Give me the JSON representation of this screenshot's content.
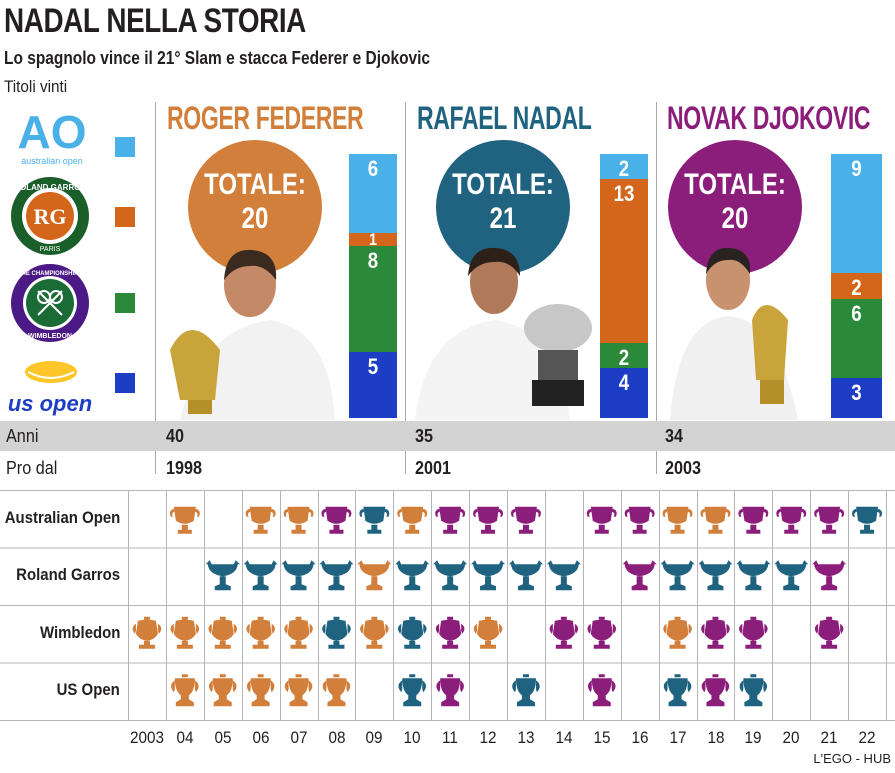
{
  "title": "NADAL NELLA STORIA",
  "subtitle": "Lo spagnolo vince il 21° Slam e stacca Federer e Djokovic",
  "caption": "Titoli vinti",
  "credit": "L'EGO - HUB",
  "colors": {
    "federer": "#d17f3a",
    "nadal": "#1f6380",
    "djokovic": "#8b1e7b",
    "australian_open": "#4ab0e8",
    "roland_garros": "#d4661c",
    "wimbledon": "#2a8a3a",
    "us_open": "#1d3ec4"
  },
  "logos": {
    "australian_open": {
      "mark": "AO",
      "text": "australian open"
    },
    "roland_garros": {
      "text": "ROLAND GARROS",
      "sub": "PARIS"
    },
    "wimbledon": {
      "text": "THE CHAMPIONSHIPS",
      "sub": "WIMBLEDON"
    },
    "us_open": {
      "text": "us open"
    }
  },
  "players": [
    {
      "name": "ROGER FEDERER",
      "total_label": "TOTALE:",
      "total": "20",
      "age": "40",
      "pro_since": "1998",
      "slams": {
        "australian_open": 6,
        "roland_garros": 1,
        "wimbledon": 8,
        "us_open": 5
      }
    },
    {
      "name": "RAFAEL NADAL",
      "total_label": "TOTALE:",
      "total": "21",
      "age": "35",
      "pro_since": "2001",
      "slams": {
        "australian_open": 2,
        "roland_garros": 13,
        "wimbledon": 2,
        "us_open": 4
      }
    },
    {
      "name": "NOVAK DJOKOVIC",
      "total_label": "TOTALE:",
      "total": "20",
      "age": "34",
      "pro_since": "2003",
      "slams": {
        "australian_open": 9,
        "roland_garros": 2,
        "wimbledon": 6,
        "us_open": 3
      }
    }
  ],
  "rows": {
    "age_label": "Anni",
    "pro_label": "Pro dal"
  },
  "chart_data": {
    "type": "table",
    "years": [
      "2003",
      "04",
      "05",
      "06",
      "07",
      "08",
      "09",
      "10",
      "11",
      "12",
      "13",
      "14",
      "15",
      "16",
      "17",
      "18",
      "19",
      "20",
      "21",
      "22"
    ],
    "tournaments": [
      {
        "name": "Australian Open",
        "winners": [
          "",
          "F",
          "",
          "F",
          "F",
          "D",
          "N",
          "F",
          "D",
          "D",
          "D",
          "",
          "D",
          "D",
          "F",
          "F",
          "D",
          "D",
          "D",
          "N"
        ]
      },
      {
        "name": "Roland Garros",
        "winners": [
          "",
          "",
          "N",
          "N",
          "N",
          "N",
          "F",
          "N",
          "N",
          "N",
          "N",
          "N",
          "",
          "D",
          "N",
          "N",
          "N",
          "N",
          "D",
          ""
        ]
      },
      {
        "name": "Wimbledon",
        "winners": [
          "F",
          "F",
          "F",
          "F",
          "F",
          "N",
          "F",
          "N",
          "D",
          "F",
          "",
          "D",
          "D",
          "",
          "F",
          "D",
          "D",
          "",
          "D",
          ""
        ]
      },
      {
        "name": "US Open",
        "winners": [
          "",
          "F",
          "F",
          "F",
          "F",
          "F",
          "",
          "N",
          "D",
          "",
          "N",
          "",
          "D",
          "",
          "N",
          "D",
          "N",
          "",
          "",
          ""
        ]
      }
    ],
    "legend": {
      "F": "ROGER FEDERER",
      "N": "RAFAEL NADAL",
      "D": "NOVAK DJOKOVIC"
    }
  }
}
